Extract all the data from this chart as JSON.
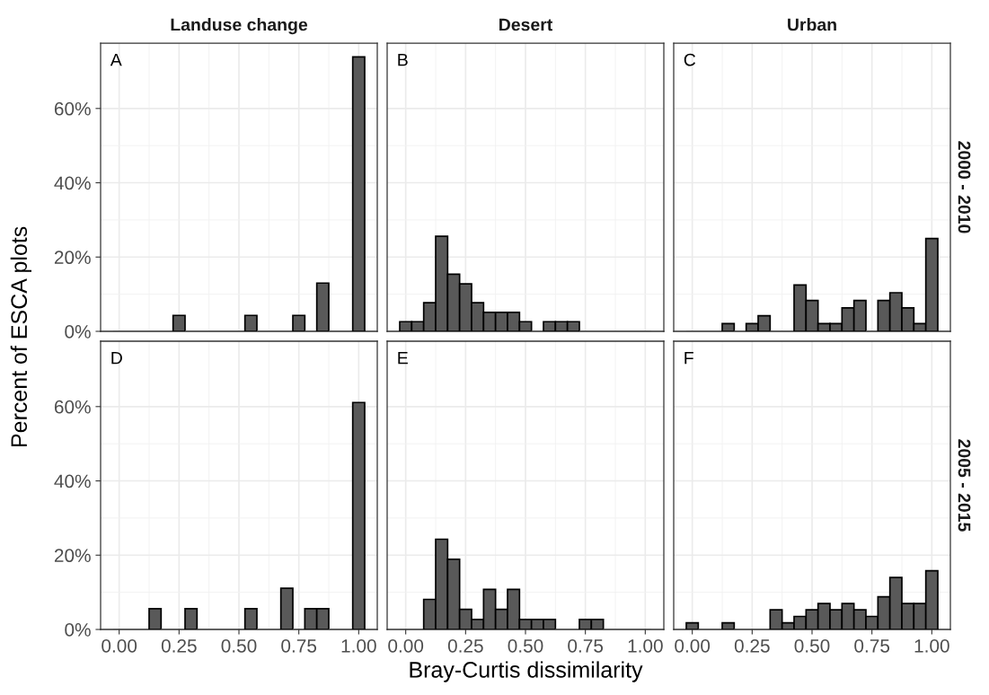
{
  "chart_data": [
    {
      "type": "histogram",
      "title": "Landuse change",
      "ylabel": "Percent of ESCA plots",
      "annotations": [
        "A"
      ],
      "bins": [
        -0.025,
        0.025,
        0.075,
        0.125,
        0.175,
        0.225,
        0.275,
        0.325,
        0.375,
        0.425,
        0.475,
        0.525,
        0.575,
        0.625,
        0.675,
        0.725,
        0.775,
        0.825,
        0.875,
        0.925,
        0.975,
        1.025
      ],
      "values": [
        0,
        0,
        0,
        0,
        0,
        4.3,
        0,
        0,
        0,
        0,
        0,
        4.3,
        0,
        0,
        0,
        4.3,
        0,
        13.0,
        0,
        0,
        73.9
      ],
      "color": "#595959",
      "xlim": [
        -0.0775,
        1.0775
      ],
      "xticks": [
        {
          "value": 0,
          "label": null
        },
        {
          "value": 0.25,
          "label": null
        },
        {
          "value": 0.5,
          "label": null
        },
        {
          "value": 0.75,
          "label": null
        },
        {
          "value": 1,
          "label": null
        }
      ],
      "ylim": [
        0,
        77.6
      ],
      "yticks": [
        {
          "value": 0,
          "label": "0%"
        },
        {
          "value": 20,
          "label": "20%"
        },
        {
          "value": 40,
          "label": "40%"
        },
        {
          "value": 60,
          "label": "60%"
        }
      ],
      "grid": true,
      "tick_labels": "y"
    },
    {
      "type": "histogram",
      "title": "Desert",
      "annotations": [
        "B"
      ],
      "bins": [
        -0.025,
        0.025,
        0.075,
        0.125,
        0.175,
        0.225,
        0.275,
        0.325,
        0.375,
        0.425,
        0.475,
        0.525,
        0.575,
        0.625,
        0.675,
        0.725,
        0.775,
        0.825,
        0.875,
        0.925,
        0.975,
        1.025
      ],
      "values": [
        2.6,
        2.6,
        7.7,
        25.6,
        15.4,
        12.8,
        7.7,
        5.1,
        5.1,
        5.1,
        2.6,
        0,
        2.6,
        2.6,
        2.6,
        0,
        0,
        0,
        0,
        0,
        0
      ],
      "color": "#595959",
      "xlim": [
        -0.0775,
        1.0775
      ],
      "xticks": [
        {
          "value": 0,
          "label": null
        },
        {
          "value": 0.25,
          "label": null
        },
        {
          "value": 0.5,
          "label": null
        },
        {
          "value": 0.75,
          "label": null
        },
        {
          "value": 1,
          "label": null
        }
      ],
      "ylim": [
        0,
        77.6
      ],
      "yticks": [
        {
          "value": 0,
          "label": null
        },
        {
          "value": 20,
          "label": null
        },
        {
          "value": 40,
          "label": null
        },
        {
          "value": 60,
          "label": null
        }
      ],
      "grid": true,
      "tick_labels": false
    },
    {
      "type": "histogram",
      "title": "Urban",
      "y2label": "2000 - 2010",
      "annotations": [
        "C"
      ],
      "bins": [
        -0.025,
        0.025,
        0.075,
        0.125,
        0.175,
        0.225,
        0.275,
        0.325,
        0.375,
        0.425,
        0.475,
        0.525,
        0.575,
        0.625,
        0.675,
        0.725,
        0.775,
        0.825,
        0.875,
        0.925,
        0.975,
        1.025
      ],
      "values": [
        0,
        0,
        0,
        2.1,
        0,
        2.1,
        4.2,
        0,
        0,
        12.5,
        8.3,
        2.1,
        2.1,
        6.3,
        8.3,
        0,
        8.3,
        10.4,
        6.3,
        2.1,
        25.0
      ],
      "color": "#595959",
      "xlim": [
        -0.0775,
        1.0775
      ],
      "xticks": [
        {
          "value": 0,
          "label": null
        },
        {
          "value": 0.25,
          "label": null
        },
        {
          "value": 0.5,
          "label": null
        },
        {
          "value": 0.75,
          "label": null
        },
        {
          "value": 1,
          "label": null
        }
      ],
      "ylim": [
        0,
        77.6
      ],
      "yticks": [
        {
          "value": 0,
          "label": null
        },
        {
          "value": 20,
          "label": null
        },
        {
          "value": 40,
          "label": null
        },
        {
          "value": 60,
          "label": null
        }
      ],
      "grid": true,
      "tick_labels": false
    },
    {
      "type": "histogram",
      "annotations": [
        "D"
      ],
      "bins": [
        -0.025,
        0.025,
        0.075,
        0.125,
        0.175,
        0.225,
        0.275,
        0.325,
        0.375,
        0.425,
        0.475,
        0.525,
        0.575,
        0.625,
        0.675,
        0.725,
        0.775,
        0.825,
        0.875,
        0.925,
        0.975,
        1.025
      ],
      "values": [
        0,
        0,
        0,
        5.6,
        0,
        0,
        5.6,
        0,
        0,
        0,
        0,
        5.6,
        0,
        0,
        11.1,
        0,
        5.6,
        5.6,
        0,
        0,
        61.1
      ],
      "color": "#595959",
      "xlim": [
        -0.0775,
        1.0775
      ],
      "xticks": [
        {
          "value": 0,
          "label": "0.00"
        },
        {
          "value": 0.25,
          "label": "0.25"
        },
        {
          "value": 0.5,
          "label": "0.50"
        },
        {
          "value": 0.75,
          "label": "0.75"
        },
        {
          "value": 1,
          "label": "1.00"
        }
      ],
      "ylim": [
        0,
        77.6
      ],
      "yticks": [
        {
          "value": 0,
          "label": "0%"
        },
        {
          "value": 20,
          "label": "20%"
        },
        {
          "value": 40,
          "label": "40%"
        },
        {
          "value": 60,
          "label": "60%"
        }
      ],
      "grid": true
    },
    {
      "type": "histogram",
      "xlabel": "Bray-Curtis dissimilarity",
      "annotations": [
        "E"
      ],
      "bins": [
        -0.025,
        0.025,
        0.075,
        0.125,
        0.175,
        0.225,
        0.275,
        0.325,
        0.375,
        0.425,
        0.475,
        0.525,
        0.575,
        0.625,
        0.675,
        0.725,
        0.775,
        0.825,
        0.875,
        0.925,
        0.975,
        1.025
      ],
      "values": [
        0,
        0,
        8.1,
        24.3,
        18.9,
        5.4,
        2.7,
        10.8,
        5.4,
        10.8,
        2.7,
        2.7,
        2.7,
        0,
        0,
        2.7,
        2.7,
        0,
        0,
        0,
        0
      ],
      "color": "#595959",
      "xlim": [
        -0.0775,
        1.0775
      ],
      "xticks": [
        {
          "value": 0,
          "label": "0.00"
        },
        {
          "value": 0.25,
          "label": "0.25"
        },
        {
          "value": 0.5,
          "label": "0.50"
        },
        {
          "value": 0.75,
          "label": "0.75"
        },
        {
          "value": 1,
          "label": "1.00"
        }
      ],
      "ylim": [
        0,
        77.6
      ],
      "yticks": [
        {
          "value": 0,
          "label": null
        },
        {
          "value": 20,
          "label": null
        },
        {
          "value": 40,
          "label": null
        },
        {
          "value": 60,
          "label": null
        }
      ],
      "grid": true,
      "tick_labels": "x"
    },
    {
      "type": "histogram",
      "y2label": "2005 - 2015",
      "annotations": [
        "F"
      ],
      "bins": [
        -0.025,
        0.025,
        0.075,
        0.125,
        0.175,
        0.225,
        0.275,
        0.325,
        0.375,
        0.425,
        0.475,
        0.525,
        0.575,
        0.625,
        0.675,
        0.725,
        0.775,
        0.825,
        0.875,
        0.925,
        0.975,
        1.025
      ],
      "values": [
        1.8,
        0,
        0,
        1.8,
        0,
        0,
        0,
        5.3,
        1.8,
        3.5,
        5.3,
        7.0,
        5.3,
        7.0,
        5.3,
        3.5,
        8.8,
        14.0,
        7.0,
        7.0,
        15.8
      ],
      "color": "#595959",
      "xlim": [
        -0.0775,
        1.0775
      ],
      "xticks": [
        {
          "value": 0,
          "label": "0.00"
        },
        {
          "value": 0.25,
          "label": "0.25"
        },
        {
          "value": 0.5,
          "label": "0.50"
        },
        {
          "value": 0.75,
          "label": "0.75"
        },
        {
          "value": 1,
          "label": "1.00"
        }
      ],
      "ylim": [
        0,
        77.6
      ],
      "yticks": [
        {
          "value": 0,
          "label": null
        },
        {
          "value": 20,
          "label": null
        },
        {
          "value": 40,
          "label": null
        },
        {
          "value": 60,
          "label": null
        }
      ],
      "grid": true,
      "tick_labels": "x"
    }
  ]
}
